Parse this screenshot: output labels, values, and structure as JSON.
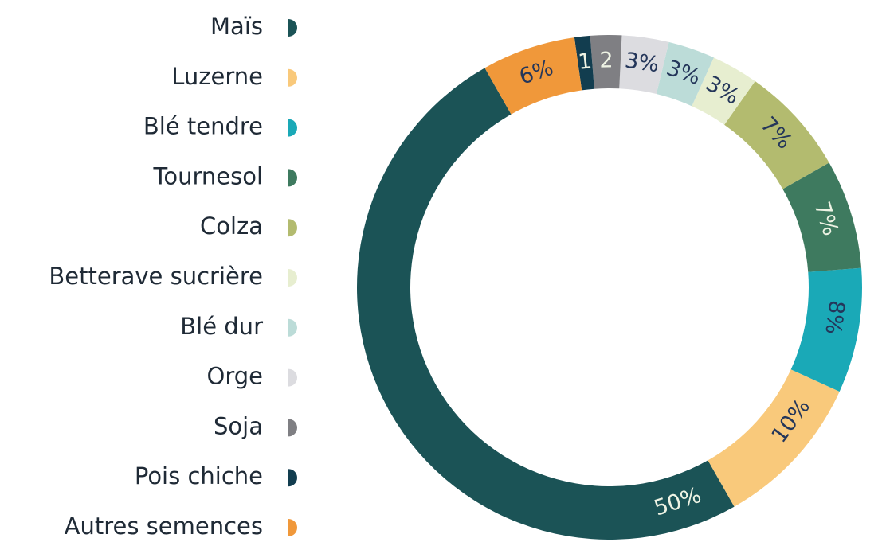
{
  "chart_data": {
    "type": "donut",
    "categories": [
      "Maïs",
      "Luzerne",
      "Blé tendre",
      "Tournesol",
      "Colza",
      "Betterave sucrière",
      "Blé dur",
      "Orge",
      "Soja",
      "Pois chiche",
      "Autres semences"
    ],
    "values": [
      50,
      10,
      8,
      7,
      7,
      3,
      3,
      3,
      2,
      1,
      6
    ],
    "value_labels": [
      "50%",
      "10%",
      "8%",
      "7%",
      "7%",
      "3%",
      "3%",
      "3%",
      "2",
      "1",
      "6%"
    ],
    "colors": [
      "#1b5356",
      "#f9c97b",
      "#1aa9b7",
      "#3e7a5f",
      "#b3bb6f",
      "#e7eed0",
      "#bcdcd8",
      "#dcdce0",
      "#7f7f83",
      "#123d4f",
      "#f0983a"
    ],
    "legend": "left"
  }
}
